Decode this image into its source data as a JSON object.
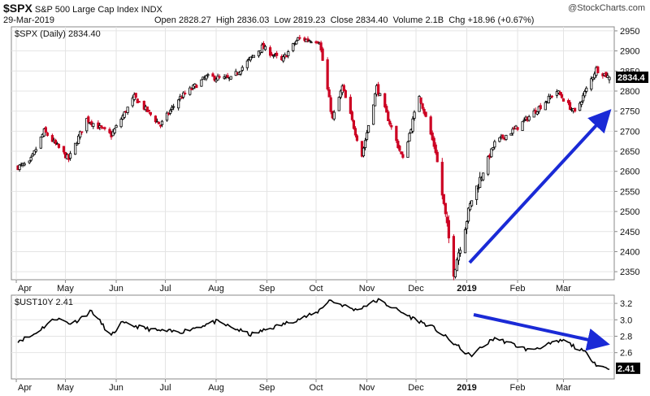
{
  "header": {
    "symbol": "$SPX",
    "name": "S&P 500 Large Cap Index",
    "exchange": "INDX",
    "date": "29-Mar-2019",
    "open_label": "Open",
    "open": "2828.27",
    "high_label": "High",
    "high": "2836.03",
    "low_label": "Low",
    "low": "2819.23",
    "close_label": "Close",
    "close": "2834.40",
    "volume_label": "Volume",
    "volume": "2.1B",
    "chg_label": "Chg",
    "chg": "+18.96 (+0.67%)",
    "watermark": "@StockCharts.com"
  },
  "colors": {
    "up": "#000000",
    "down": "#cc0022",
    "arrow": "#1a2ad6",
    "line": "#000000",
    "grid": "#e4e4e4"
  },
  "chart_data": [
    {
      "type": "candlestick",
      "legend": "$SPX (Daily) 2834.40",
      "last_value_label": "2834.4",
      "ylim": [
        2330,
        2960
      ],
      "yticks": [
        2350,
        2400,
        2450,
        2500,
        2550,
        2600,
        2650,
        2700,
        2750,
        2800,
        2850,
        2900,
        2950
      ],
      "x_ticks": [
        "Apr",
        "May",
        "Jun",
        "Jul",
        "Aug",
        "Sep",
        "Oct",
        "Nov",
        "Dec",
        "2019",
        "Feb",
        "Mar"
      ],
      "approximate_close_path": [
        {
          "x": "2018-04-01",
          "y": 2610
        },
        {
          "x": "2018-04-09",
          "y": 2620
        },
        {
          "x": "2018-04-18",
          "y": 2700
        },
        {
          "x": "2018-05-03",
          "y": 2630
        },
        {
          "x": "2018-05-14",
          "y": 2730
        },
        {
          "x": "2018-05-29",
          "y": 2690
        },
        {
          "x": "2018-06-12",
          "y": 2785
        },
        {
          "x": "2018-06-28",
          "y": 2715
        },
        {
          "x": "2018-07-09",
          "y": 2780
        },
        {
          "x": "2018-07-26",
          "y": 2835
        },
        {
          "x": "2018-08-10",
          "y": 2830
        },
        {
          "x": "2018-08-29",
          "y": 2910
        },
        {
          "x": "2018-09-10",
          "y": 2875
        },
        {
          "x": "2018-09-20",
          "y": 2930
        },
        {
          "x": "2018-10-03",
          "y": 2925
        },
        {
          "x": "2018-10-11",
          "y": 2730
        },
        {
          "x": "2018-10-17",
          "y": 2810
        },
        {
          "x": "2018-10-29",
          "y": 2640
        },
        {
          "x": "2018-11-07",
          "y": 2810
        },
        {
          "x": "2018-11-23",
          "y": 2630
        },
        {
          "x": "2018-12-03",
          "y": 2790
        },
        {
          "x": "2018-12-13",
          "y": 2650
        },
        {
          "x": "2018-12-24",
          "y": 2351
        },
        {
          "x": "2019-01-04",
          "y": 2530
        },
        {
          "x": "2019-01-18",
          "y": 2670
        },
        {
          "x": "2019-02-01",
          "y": 2710
        },
        {
          "x": "2019-02-25",
          "y": 2800
        },
        {
          "x": "2019-03-08",
          "y": 2745
        },
        {
          "x": "2019-03-21",
          "y": 2855
        },
        {
          "x": "2019-03-29",
          "y": 2834
        }
      ],
      "annotation": "up-arrow"
    },
    {
      "type": "line",
      "legend": "$UST10Y 2.41",
      "last_value_label": "2.41",
      "ylim": [
        2.28,
        3.3
      ],
      "yticks": [
        2.6,
        2.8,
        3.0,
        3.2
      ],
      "x_ticks": [
        "Apr",
        "May",
        "Jun",
        "Jul",
        "Aug",
        "Sep",
        "Oct",
        "Nov",
        "Dec",
        "2019",
        "Feb",
        "Mar"
      ],
      "approximate_path": [
        {
          "x": "2018-04-01",
          "y": 2.74
        },
        {
          "x": "2018-04-10",
          "y": 2.8
        },
        {
          "x": "2018-04-25",
          "y": 3.02
        },
        {
          "x": "2018-05-05",
          "y": 2.95
        },
        {
          "x": "2018-05-17",
          "y": 3.11
        },
        {
          "x": "2018-05-29",
          "y": 2.8
        },
        {
          "x": "2018-06-04",
          "y": 2.96
        },
        {
          "x": "2018-06-25",
          "y": 2.87
        },
        {
          "x": "2018-07-10",
          "y": 2.85
        },
        {
          "x": "2018-08-01",
          "y": 2.98
        },
        {
          "x": "2018-08-22",
          "y": 2.82
        },
        {
          "x": "2018-09-10",
          "y": 2.94
        },
        {
          "x": "2018-10-01",
          "y": 3.08
        },
        {
          "x": "2018-10-09",
          "y": 3.24
        },
        {
          "x": "2018-10-25",
          "y": 3.12
        },
        {
          "x": "2018-11-08",
          "y": 3.24
        },
        {
          "x": "2018-11-28",
          "y": 3.03
        },
        {
          "x": "2018-12-12",
          "y": 2.9
        },
        {
          "x": "2019-01-03",
          "y": 2.56
        },
        {
          "x": "2019-01-18",
          "y": 2.78
        },
        {
          "x": "2019-02-08",
          "y": 2.63
        },
        {
          "x": "2019-03-01",
          "y": 2.75
        },
        {
          "x": "2019-03-15",
          "y": 2.59
        },
        {
          "x": "2019-03-22",
          "y": 2.44
        },
        {
          "x": "2019-03-29",
          "y": 2.41
        }
      ],
      "annotation": "down-arrow"
    }
  ]
}
